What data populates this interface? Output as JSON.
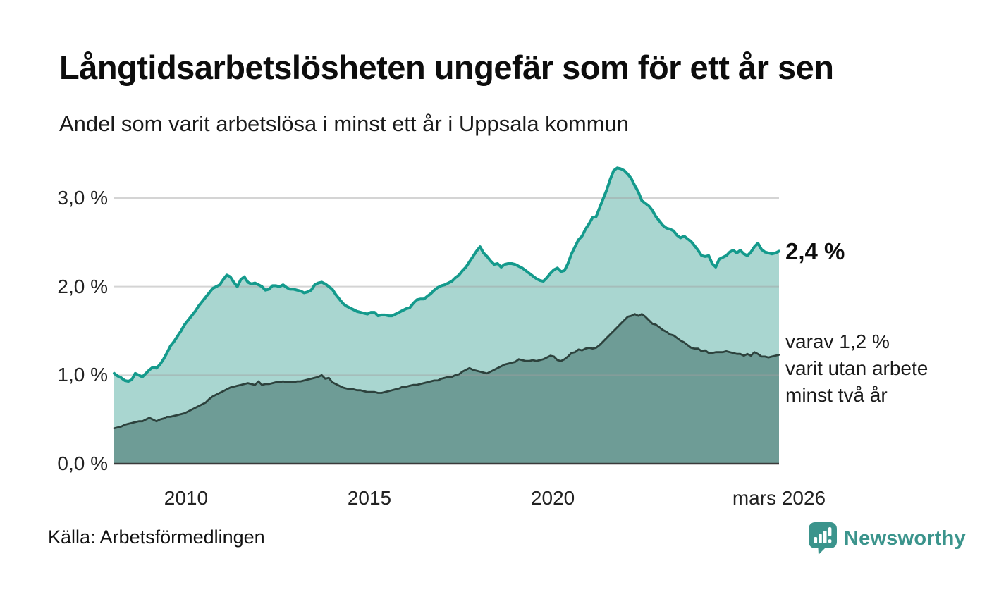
{
  "header": {
    "title": "Långtidsarbetslösheten ungefär som för ett år sen",
    "subtitle": "Andel som varit arbetslösa i minst ett år i Uppsala kommun"
  },
  "annotations": {
    "total_label": "2,4 %",
    "breakdown_line1": "varav 1,2 %",
    "breakdown_line2": "varit utan arbete",
    "breakdown_line3": "minst två år"
  },
  "footer": {
    "source": "Källa: Arbetsförmedlingen",
    "brand": "Newsworthy",
    "brand_color": "#3b948c"
  },
  "chart_data": {
    "type": "area",
    "title": "Långtidsarbetslösheten ungefär som för ett år sen",
    "subtitle": "Andel som varit arbetslösa i minst ett år i Uppsala kommun",
    "unit": "%",
    "grid": true,
    "legend_position": "annotated-right",
    "ylim": [
      0,
      3.5
    ],
    "x_range": {
      "start": 2008.04,
      "end": 2026.17
    },
    "x_ticks": [
      {
        "label": "2010",
        "year": 2010
      },
      {
        "label": "2015",
        "year": 2015
      },
      {
        "label": "2020",
        "year": 2020
      },
      {
        "label": "mars 2026",
        "year": 2026.17
      }
    ],
    "y_ticks": [
      {
        "label": "0,0 %",
        "value": 0
      },
      {
        "label": "1,0 %",
        "value": 1
      },
      {
        "label": "2,0 %",
        "value": 2
      },
      {
        "label": "3,0 %",
        "value": 3
      }
    ],
    "axis_color": "#3a3a3a",
    "gridline_color": "#a0a0a0",
    "series": [
      {
        "name": "Arbetslösa minst ett år",
        "line_color": "#149a8c",
        "fill_color": "#a9d6d0",
        "latest_value": 2.4,
        "end_value_label": "2,4 %",
        "values": [
          1.02,
          0.99,
          0.97,
          0.94,
          0.93,
          0.95,
          1.02,
          1.0,
          0.98,
          1.02,
          1.06,
          1.09,
          1.08,
          1.12,
          1.18,
          1.25,
          1.33,
          1.38,
          1.44,
          1.5,
          1.57,
          1.62,
          1.67,
          1.72,
          1.78,
          1.83,
          1.88,
          1.93,
          1.98,
          2.0,
          2.02,
          2.08,
          2.13,
          2.11,
          2.05,
          2.0,
          2.08,
          2.11,
          2.05,
          2.03,
          2.04,
          2.02,
          2.0,
          1.96,
          1.97,
          2.01,
          2.01,
          2.0,
          2.02,
          1.99,
          1.97,
          1.97,
          1.96,
          1.95,
          1.93,
          1.94,
          1.96,
          2.02,
          2.04,
          2.05,
          2.03,
          2.0,
          1.97,
          1.91,
          1.86,
          1.81,
          1.78,
          1.76,
          1.74,
          1.72,
          1.71,
          1.7,
          1.69,
          1.71,
          1.71,
          1.67,
          1.68,
          1.68,
          1.67,
          1.67,
          1.69,
          1.71,
          1.73,
          1.75,
          1.76,
          1.81,
          1.85,
          1.86,
          1.86,
          1.89,
          1.92,
          1.96,
          1.99,
          2.01,
          2.02,
          2.04,
          2.06,
          2.1,
          2.13,
          2.18,
          2.22,
          2.28,
          2.34,
          2.4,
          2.45,
          2.38,
          2.34,
          2.29,
          2.25,
          2.26,
          2.22,
          2.25,
          2.26,
          2.26,
          2.25,
          2.23,
          2.21,
          2.18,
          2.15,
          2.12,
          2.09,
          2.07,
          2.06,
          2.1,
          2.15,
          2.19,
          2.21,
          2.17,
          2.18,
          2.26,
          2.37,
          2.45,
          2.53,
          2.57,
          2.65,
          2.71,
          2.78,
          2.79,
          2.89,
          2.99,
          3.09,
          3.21,
          3.31,
          3.34,
          3.33,
          3.31,
          3.27,
          3.22,
          3.14,
          3.07,
          2.97,
          2.94,
          2.91,
          2.86,
          2.79,
          2.74,
          2.69,
          2.66,
          2.65,
          2.63,
          2.58,
          2.55,
          2.57,
          2.54,
          2.51,
          2.46,
          2.41,
          2.35,
          2.34,
          2.35,
          2.26,
          2.22,
          2.31,
          2.33,
          2.35,
          2.39,
          2.41,
          2.38,
          2.41,
          2.37,
          2.35,
          2.39,
          2.45,
          2.49,
          2.42,
          2.39,
          2.38,
          2.37,
          2.38,
          2.4
        ]
      },
      {
        "name": "Varav utan arbete minst två år",
        "line_color": "#2d423d",
        "fill_color": "#6e9c96",
        "latest_value": 1.2,
        "end_value_label": "varav 1,2 % varit utan arbete minst två år",
        "values": [
          0.4,
          0.41,
          0.42,
          0.44,
          0.45,
          0.46,
          0.47,
          0.48,
          0.48,
          0.5,
          0.52,
          0.5,
          0.48,
          0.5,
          0.51,
          0.53,
          0.53,
          0.54,
          0.55,
          0.56,
          0.57,
          0.59,
          0.61,
          0.63,
          0.65,
          0.67,
          0.69,
          0.73,
          0.76,
          0.78,
          0.8,
          0.82,
          0.84,
          0.86,
          0.87,
          0.88,
          0.89,
          0.9,
          0.91,
          0.9,
          0.89,
          0.93,
          0.89,
          0.9,
          0.9,
          0.91,
          0.92,
          0.92,
          0.93,
          0.92,
          0.92,
          0.92,
          0.93,
          0.93,
          0.94,
          0.95,
          0.96,
          0.97,
          0.98,
          1.0,
          0.96,
          0.97,
          0.92,
          0.9,
          0.88,
          0.86,
          0.85,
          0.84,
          0.84,
          0.83,
          0.83,
          0.82,
          0.81,
          0.81,
          0.81,
          0.8,
          0.8,
          0.81,
          0.82,
          0.83,
          0.84,
          0.85,
          0.87,
          0.87,
          0.88,
          0.89,
          0.89,
          0.9,
          0.91,
          0.92,
          0.93,
          0.94,
          0.94,
          0.96,
          0.97,
          0.98,
          0.98,
          1.0,
          1.01,
          1.04,
          1.06,
          1.08,
          1.06,
          1.05,
          1.04,
          1.03,
          1.02,
          1.04,
          1.06,
          1.08,
          1.1,
          1.12,
          1.13,
          1.14,
          1.15,
          1.18,
          1.17,
          1.16,
          1.16,
          1.17,
          1.16,
          1.17,
          1.18,
          1.2,
          1.22,
          1.21,
          1.17,
          1.16,
          1.18,
          1.21,
          1.25,
          1.26,
          1.29,
          1.28,
          1.3,
          1.31,
          1.3,
          1.31,
          1.34,
          1.38,
          1.42,
          1.46,
          1.5,
          1.54,
          1.58,
          1.62,
          1.66,
          1.67,
          1.69,
          1.67,
          1.69,
          1.66,
          1.62,
          1.58,
          1.57,
          1.54,
          1.51,
          1.49,
          1.46,
          1.45,
          1.42,
          1.39,
          1.37,
          1.34,
          1.31,
          1.3,
          1.3,
          1.27,
          1.28,
          1.25,
          1.25,
          1.26,
          1.26,
          1.26,
          1.27,
          1.26,
          1.25,
          1.24,
          1.24,
          1.22,
          1.24,
          1.22,
          1.26,
          1.24,
          1.21,
          1.21,
          1.2,
          1.21,
          1.22,
          1.23
        ]
      }
    ]
  }
}
